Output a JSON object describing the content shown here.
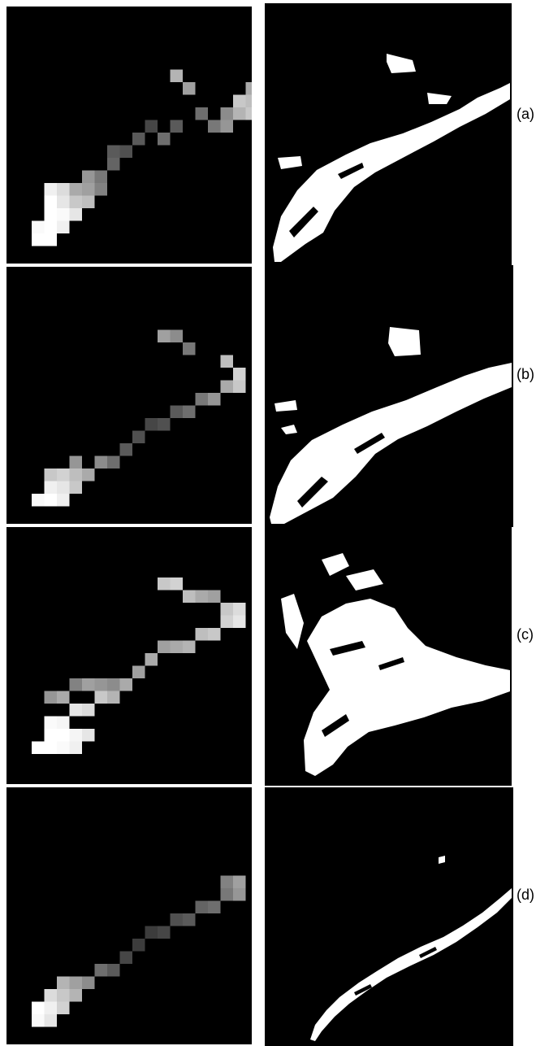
{
  "figure": {
    "rows": [
      {
        "label": "(a)"
      },
      {
        "label": "(b)"
      },
      {
        "label": "(c)"
      },
      {
        "label": "(d)"
      }
    ]
  },
  "colors": {
    "background": "#000000",
    "foreground": "#ffffff",
    "page": "#ffffff"
  }
}
